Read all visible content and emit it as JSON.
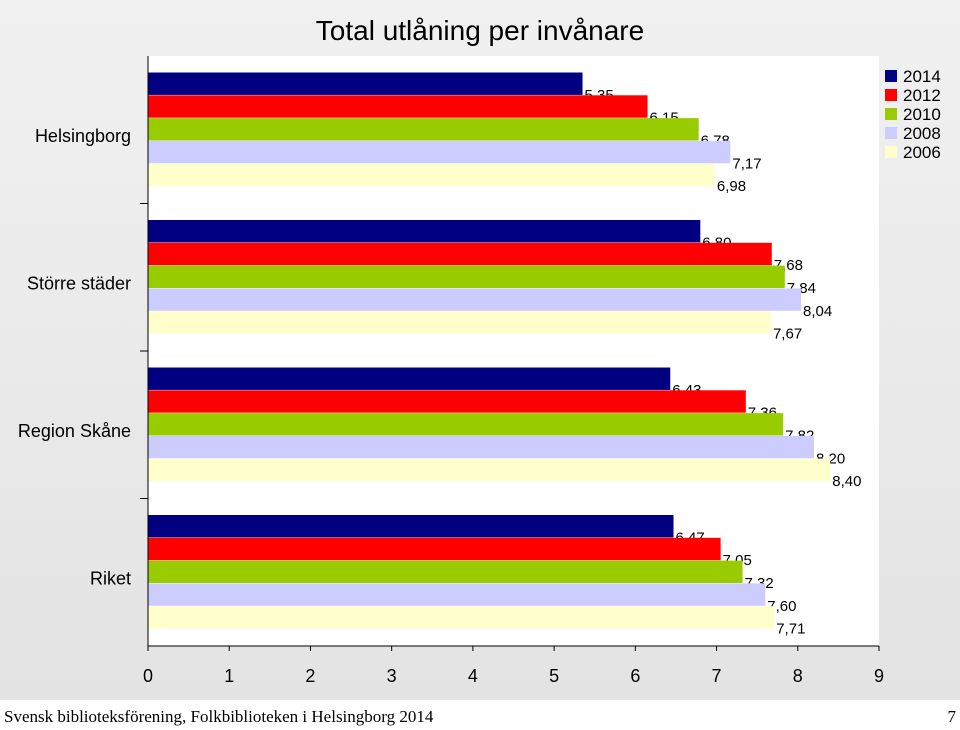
{
  "chart_data": {
    "type": "bar",
    "orientation": "horizontal",
    "title": "Total utlåning per invånare",
    "categories": [
      "Helsingborg",
      "Större städer",
      "Region Skåne",
      "Riket"
    ],
    "series": [
      {
        "name": "2014",
        "color": "#000080",
        "values": [
          5.35,
          6.8,
          6.43,
          6.47
        ],
        "labels": [
          "5,35",
          "6,80",
          "6,43",
          "6,47"
        ]
      },
      {
        "name": "2012",
        "color": "#ff0000",
        "values": [
          6.15,
          7.68,
          7.36,
          7.05
        ],
        "labels": [
          "6,15",
          "7,68",
          "7,36",
          "7,05"
        ]
      },
      {
        "name": "2010",
        "color": "#99cc00",
        "values": [
          6.78,
          7.84,
          7.82,
          7.32
        ],
        "labels": [
          "6,78",
          "7,84",
          "7,82",
          "7,32"
        ]
      },
      {
        "name": "2008",
        "color": "#ccccff",
        "values": [
          7.17,
          8.04,
          8.2,
          7.6
        ],
        "labels": [
          "7,17",
          "8,04",
          "8,20",
          "7,60"
        ]
      },
      {
        "name": "2006",
        "color": "#ffffcc",
        "values": [
          6.98,
          7.67,
          8.4,
          7.71
        ],
        "labels": [
          "6,98",
          "7,67",
          "8,40",
          "7,71"
        ]
      }
    ],
    "xlim": [
      0,
      9
    ],
    "xticks": [
      "0",
      "1",
      "2",
      "3",
      "4",
      "5",
      "6",
      "7",
      "8",
      "9"
    ],
    "xlabel": "",
    "ylabel": "",
    "grid": false,
    "legend_position": "top-right"
  },
  "footer": {
    "source": "Svensk biblioteksförening, Folkbiblioteken i Helsingborg 2014",
    "page_number": "7"
  }
}
